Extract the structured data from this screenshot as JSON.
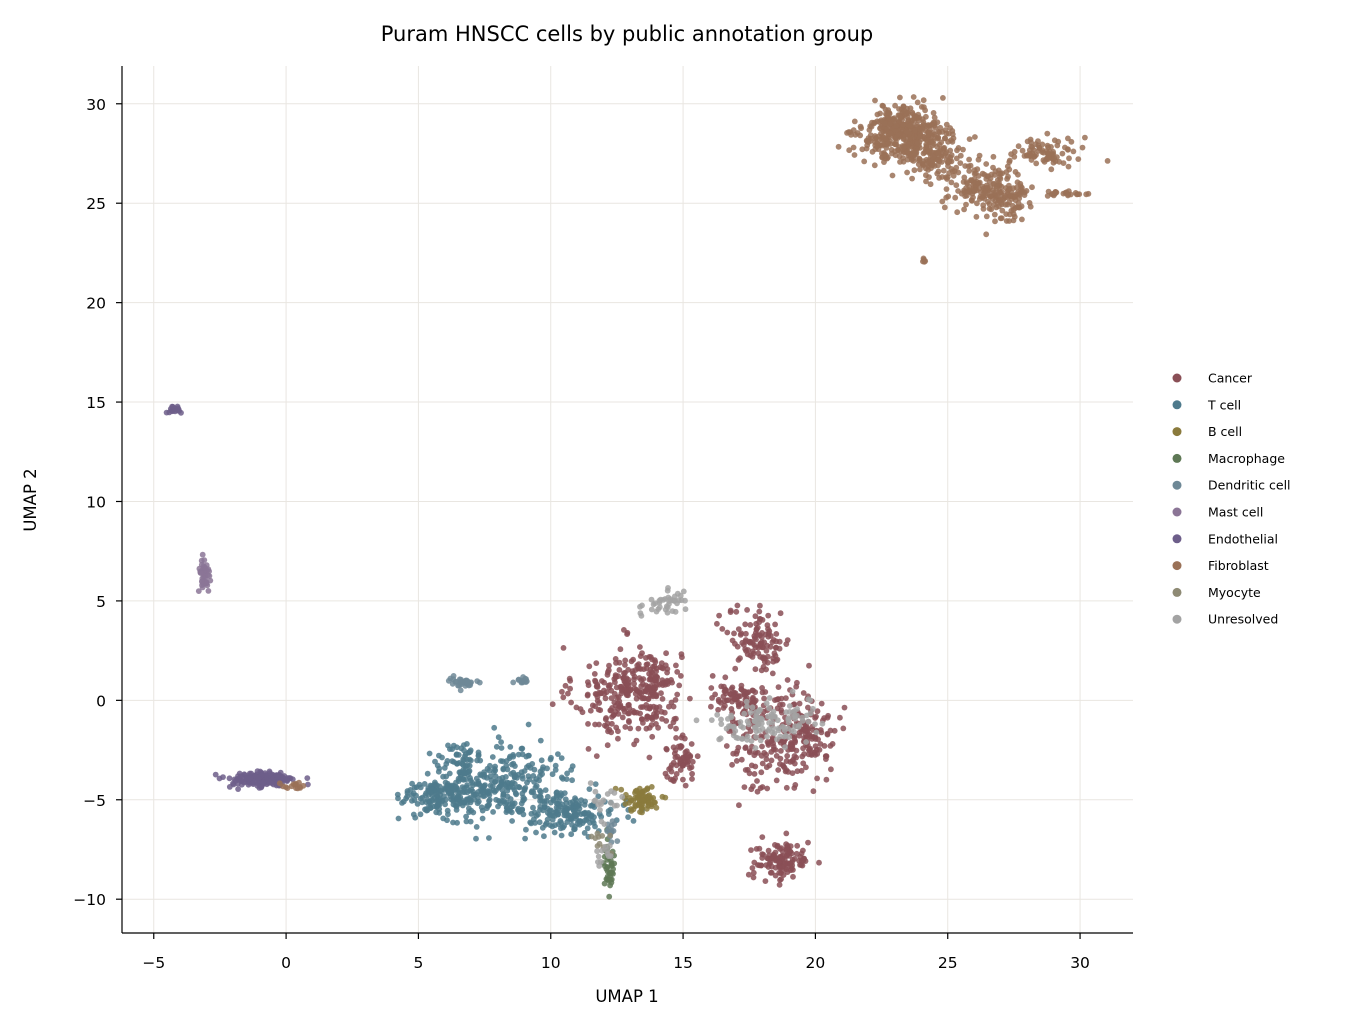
{
  "chart_data": {
    "type": "scatter",
    "title": "Puram HNSCC cells by public annotation group",
    "xlabel": "UMAP 1",
    "ylabel": "UMAP 2",
    "xlim": [
      -6.2,
      32
    ],
    "ylim": [
      -11.7,
      31.9
    ],
    "x_ticks": [
      -5,
      0,
      5,
      10,
      15,
      20,
      25,
      30
    ],
    "x_tick_labels": [
      "−5",
      "0",
      "5",
      "10",
      "15",
      "20",
      "25",
      "30"
    ],
    "y_ticks": [
      -10,
      -5,
      0,
      5,
      10,
      15,
      20,
      25,
      30
    ],
    "y_tick_labels": [
      "−10",
      "−5",
      "0",
      "5",
      "10",
      "15",
      "20",
      "25",
      "30"
    ],
    "grid": true,
    "legend_position": "right",
    "series": [
      {
        "name": "Cancer",
        "color": "#8a4f56",
        "clusters": [
          {
            "cx": 12.9,
            "cy": 0.3,
            "sx": 1.0,
            "sy": 1.2,
            "n": 260
          },
          {
            "cx": 13.9,
            "cy": 1.0,
            "sx": 0.4,
            "sy": 0.7,
            "n": 70
          },
          {
            "cx": 14.9,
            "cy": -3.0,
            "sx": 0.35,
            "sy": 0.6,
            "n": 60
          },
          {
            "cx": 17.9,
            "cy": 3.0,
            "sx": 0.6,
            "sy": 0.8,
            "n": 110
          },
          {
            "cx": 17.0,
            "cy": 0.1,
            "sx": 0.6,
            "sy": 0.35,
            "n": 70
          },
          {
            "cx": 18.5,
            "cy": -1.8,
            "sx": 0.9,
            "sy": 1.4,
            "n": 200
          },
          {
            "cx": 19.8,
            "cy": -1.6,
            "sx": 0.5,
            "sy": 0.7,
            "n": 80
          },
          {
            "cx": 18.7,
            "cy": -8.1,
            "sx": 0.55,
            "sy": 0.5,
            "n": 120
          }
        ]
      },
      {
        "name": "T cell",
        "color": "#4e7a8c",
        "clusters": [
          {
            "cx": 6.0,
            "cy": -4.8,
            "sx": 0.8,
            "sy": 0.5,
            "n": 180
          },
          {
            "cx": 8.3,
            "cy": -4.2,
            "sx": 1.3,
            "sy": 0.9,
            "n": 260
          },
          {
            "cx": 10.7,
            "cy": -5.7,
            "sx": 0.9,
            "sy": 0.45,
            "n": 170
          },
          {
            "cx": 6.7,
            "cy": -2.9,
            "sx": 0.4,
            "sy": 0.4,
            "n": 40
          }
        ]
      },
      {
        "name": "B cell",
        "color": "#8a7a3c",
        "clusters": [
          {
            "cx": 13.4,
            "cy": -5.0,
            "sx": 0.35,
            "sy": 0.35,
            "n": 70
          }
        ]
      },
      {
        "name": "Macrophage",
        "color": "#5e7855",
        "clusters": [
          {
            "cx": 12.2,
            "cy": -8.3,
            "sx": 0.12,
            "sy": 0.7,
            "n": 45
          }
        ]
      },
      {
        "name": "Dendritic cell",
        "color": "#6e8896",
        "clusters": [
          {
            "cx": 6.7,
            "cy": 0.9,
            "sx": 0.3,
            "sy": 0.18,
            "n": 35
          },
          {
            "cx": 8.9,
            "cy": 1.0,
            "sx": 0.1,
            "sy": 0.1,
            "n": 14
          },
          {
            "cx": 12.3,
            "cy": -6.5,
            "sx": 0.15,
            "sy": 0.4,
            "n": 14
          }
        ]
      },
      {
        "name": "Mast cell",
        "color": "#8b7596",
        "clusters": [
          {
            "cx": -3.1,
            "cy": 6.3,
            "sx": 0.1,
            "sy": 0.5,
            "n": 45
          }
        ]
      },
      {
        "name": "Endothelial",
        "color": "#6d5e8a",
        "clusters": [
          {
            "cx": -0.9,
            "cy": -4.0,
            "sx": 0.65,
            "sy": 0.2,
            "n": 160
          },
          {
            "cx": -4.2,
            "cy": 14.6,
            "sx": 0.15,
            "sy": 0.1,
            "n": 18
          }
        ]
      },
      {
        "name": "Fibroblast",
        "color": "#9a7157",
        "clusters": [
          {
            "cx": 23.3,
            "cy": 28.5,
            "sx": 0.8,
            "sy": 0.65,
            "n": 420
          },
          {
            "cx": 24.6,
            "cy": 27.4,
            "sx": 0.6,
            "sy": 0.6,
            "n": 120
          },
          {
            "cx": 26.2,
            "cy": 25.9,
            "sx": 0.6,
            "sy": 0.7,
            "n": 140
          },
          {
            "cx": 27.2,
            "cy": 25.2,
            "sx": 0.45,
            "sy": 0.6,
            "n": 90
          },
          {
            "cx": 28.8,
            "cy": 27.6,
            "sx": 0.6,
            "sy": 0.35,
            "n": 80
          },
          {
            "cx": 29.3,
            "cy": 25.5,
            "sx": 0.5,
            "sy": 0.08,
            "n": 24
          },
          {
            "cx": 24.1,
            "cy": 22.1,
            "sx": 0.05,
            "sy": 0.05,
            "n": 5
          },
          {
            "cx": 0.3,
            "cy": -4.3,
            "sx": 0.25,
            "sy": 0.1,
            "n": 14
          }
        ]
      },
      {
        "name": "Myocyte",
        "color": "#8e8a74",
        "clusters": [
          {
            "cx": 12.0,
            "cy": -7.0,
            "sx": 0.2,
            "sy": 0.3,
            "n": 10
          }
        ]
      },
      {
        "name": "Unresolved",
        "color": "#a3a3a3",
        "clusters": [
          {
            "cx": 14.3,
            "cy": 4.9,
            "sx": 0.45,
            "sy": 0.35,
            "n": 40
          },
          {
            "cx": 18.0,
            "cy": -1.2,
            "sx": 0.9,
            "sy": 0.55,
            "n": 120
          },
          {
            "cx": 12.1,
            "cy": -5.0,
            "sx": 0.3,
            "sy": 0.6,
            "n": 18
          },
          {
            "cx": 12.0,
            "cy": -7.8,
            "sx": 0.2,
            "sy": 0.3,
            "n": 12
          }
        ]
      }
    ]
  }
}
